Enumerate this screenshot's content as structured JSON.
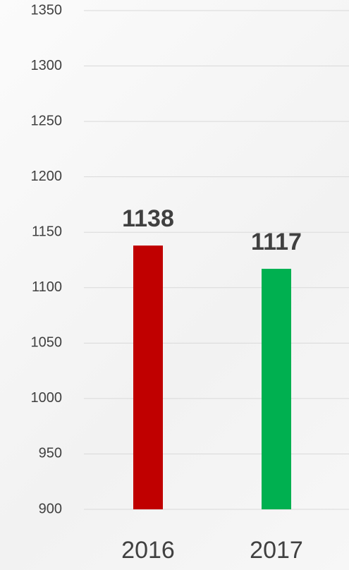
{
  "chart_data": {
    "type": "bar",
    "categories": [
      "2016",
      "2017"
    ],
    "values": [
      1138,
      1117
    ],
    "colors": [
      "#c00000",
      "#00b050"
    ],
    "ylim": [
      900,
      1350
    ],
    "yticks": [
      900,
      950,
      1000,
      1050,
      1100,
      1150,
      1200,
      1250,
      1300,
      1350
    ],
    "grid": true
  }
}
